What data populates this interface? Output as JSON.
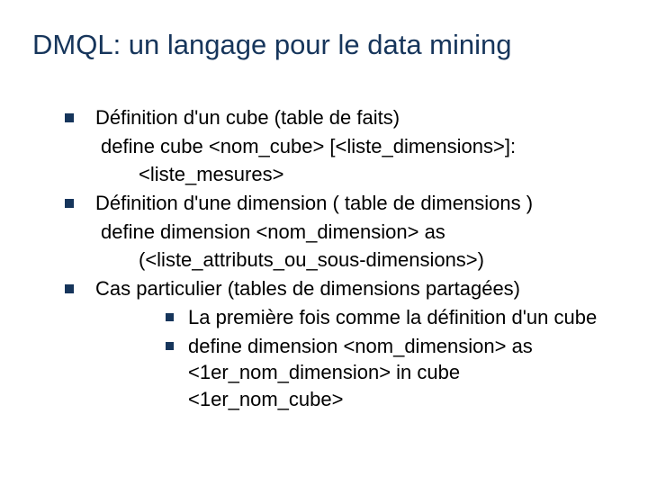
{
  "colors": {
    "title": "#16355b",
    "bullet": "#16355b",
    "text": "#000000",
    "background": "#ffffff"
  },
  "typography": {
    "title_fontsize": 31,
    "body_fontsize": 22,
    "font_family": "Verdana"
  },
  "title": "DMQL: un langage pour le data mining",
  "items": [
    {
      "bullet_text": "Définition d'un cube (table de faits)",
      "code_lines": [
        "define cube <nom_cube> [<liste_dimensions>]:",
        "<liste_mesures>"
      ]
    },
    {
      "bullet_text": "Définition d'une dimension ( table de dimensions )",
      "code_lines": [
        "define dimension <nom_dimension> as",
        "(<liste_attributs_ou_sous-dimensions>)"
      ]
    },
    {
      "bullet_text": "Cas particulier (tables de dimensions partagées)",
      "sub_bullets": [
        "La première fois comme la définition d'un cube",
        "define dimension <nom_dimension> as <1er_nom_dimension> in cube <1er_nom_cube>"
      ]
    }
  ]
}
